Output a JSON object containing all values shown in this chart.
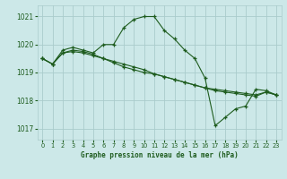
{
  "title": "Graphe pression niveau de la mer (hPa)",
  "bg_color": "#cce8e8",
  "grid_color": "#aacccc",
  "line_color": "#1e5c1e",
  "xlim": [
    -0.5,
    23.5
  ],
  "ylim": [
    1016.6,
    1021.4
  ],
  "yticks": [
    1017,
    1018,
    1019,
    1020,
    1021
  ],
  "xticks": [
    0,
    1,
    2,
    3,
    4,
    5,
    6,
    7,
    8,
    9,
    10,
    11,
    12,
    13,
    14,
    15,
    16,
    17,
    18,
    19,
    20,
    21,
    22,
    23
  ],
  "series": [
    {
      "x": [
        0,
        1,
        2,
        3,
        4,
        5,
        6,
        7,
        8,
        9,
        10,
        11,
        12,
        13,
        14,
        15,
        16,
        17,
        18,
        19,
        20,
        21,
        22,
        23
      ],
      "y": [
        1019.5,
        1019.3,
        1019.8,
        1019.9,
        1019.8,
        1019.7,
        1020.0,
        1020.0,
        1020.6,
        1020.9,
        1021.0,
        1021.0,
        1020.5,
        1020.2,
        1019.8,
        1019.5,
        1018.8,
        1017.1,
        1017.4,
        1017.7,
        1017.8,
        1018.4,
        1018.35,
        1018.2
      ]
    },
    {
      "x": [
        0,
        1,
        2,
        3,
        4,
        5,
        6,
        7,
        8,
        9,
        10,
        11,
        12,
        13,
        14,
        15,
        16,
        17,
        18,
        19,
        20,
        21,
        22,
        23
      ],
      "y": [
        1019.5,
        1019.3,
        1019.7,
        1019.75,
        1019.7,
        1019.6,
        1019.5,
        1019.35,
        1019.2,
        1019.1,
        1019.0,
        1018.95,
        1018.85,
        1018.75,
        1018.65,
        1018.55,
        1018.45,
        1018.4,
        1018.35,
        1018.3,
        1018.25,
        1018.2,
        1018.3,
        1018.2
      ]
    },
    {
      "x": [
        0,
        1,
        2,
        3,
        4,
        5,
        6,
        7,
        8,
        9,
        10,
        11,
        12,
        13,
        14,
        15,
        16,
        17,
        18,
        19,
        20,
        21,
        22,
        23
      ],
      "y": [
        1019.5,
        1019.3,
        1019.7,
        1019.8,
        1019.75,
        1019.65,
        1019.5,
        1019.4,
        1019.3,
        1019.2,
        1019.1,
        1018.95,
        1018.85,
        1018.75,
        1018.65,
        1018.55,
        1018.45,
        1018.35,
        1018.3,
        1018.25,
        1018.2,
        1018.15,
        1018.3,
        1018.2
      ]
    }
  ]
}
